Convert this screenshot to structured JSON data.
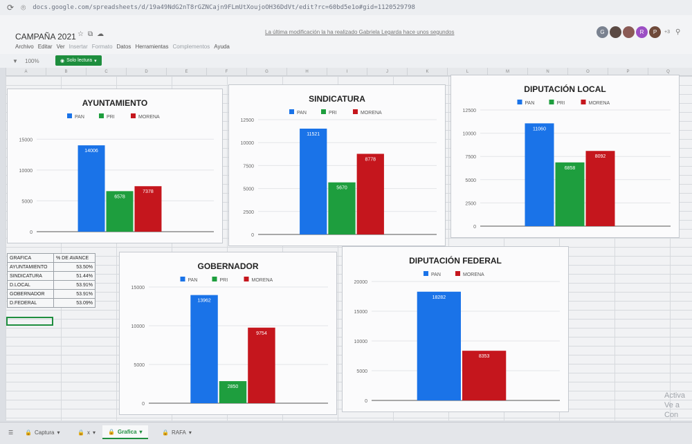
{
  "browser": {
    "url": "docs.google.com/spreadsheets/d/19a49NdG2nT8rGZNCajn9FLmUtXoujoOH36DdVt/edit?rc=60bd5e1o#gid=1120529798"
  },
  "document": {
    "title": "CAMPAÑA 2021",
    "last_edit": "La última modificación la ha realizado Gabriela Legarda hace unos segundos",
    "menus": [
      "Archivo",
      "Editar",
      "Ver",
      "Insertar",
      "Formato",
      "Datos",
      "Herramientas",
      "Complementos",
      "Ayuda"
    ],
    "zoom": "100%",
    "readonly_label": "Solo lectura",
    "more_users": "+3"
  },
  "avatars": [
    {
      "letter": "G",
      "color": "#7a8290"
    },
    {
      "letter": "",
      "color": "#5b4a44"
    },
    {
      "letter": "",
      "color": "#8a5a55"
    },
    {
      "letter": "R",
      "color": "#9c4fc4"
    },
    {
      "letter": "P",
      "color": "#6f4a3a"
    }
  ],
  "columns": [
    "A",
    "B",
    "C",
    "D",
    "E",
    "F",
    "G",
    "H",
    "I",
    "J",
    "K",
    "L",
    "M",
    "N",
    "O",
    "P",
    "Q"
  ],
  "colors": {
    "PAN": "#1a73e8",
    "PRI": "#1e9e3e",
    "MORENA": "#c5161d"
  },
  "chart_data": [
    {
      "id": "ayuntamiento",
      "type": "bar",
      "title": "AYUNTAMIENTO",
      "legend": [
        "PAN",
        "PRI",
        "MORENA"
      ],
      "legend_position": "top",
      "values": [
        14006,
        6578,
        7378
      ],
      "ylim": [
        0,
        17500
      ],
      "ticks": [
        0,
        5000,
        10000,
        15000
      ]
    },
    {
      "id": "sindicatura",
      "type": "bar",
      "title": "SINDICATURA",
      "legend": [
        "PAN",
        "PRI",
        "MORENA"
      ],
      "legend_position": "top",
      "values": [
        11521,
        5670,
        8778
      ],
      "ylim": [
        0,
        12500
      ],
      "ticks": [
        0,
        2500,
        5000,
        7500,
        10000,
        12500
      ]
    },
    {
      "id": "diputacion-local",
      "type": "bar",
      "title": "DIPUTACIÓN LOCAL",
      "legend": [
        "PAN",
        "PRI",
        "MORENA"
      ],
      "legend_position": "top",
      "values": [
        11060,
        6858,
        8092
      ],
      "ylim": [
        0,
        12500
      ],
      "ticks": [
        0,
        2500,
        5000,
        7500,
        10000,
        12500
      ]
    },
    {
      "id": "gobernador",
      "type": "bar",
      "title": "GOBERNADOR",
      "legend": [
        "PAN",
        "PRI",
        "MORENA"
      ],
      "legend_position": "top",
      "values": [
        13962,
        2850,
        9754
      ],
      "ylim": [
        0,
        15000
      ],
      "ticks": [
        0,
        5000,
        10000,
        15000
      ]
    },
    {
      "id": "diputacion-federal",
      "type": "bar",
      "title": "DIPUTACIÓN FEDERAL",
      "legend": [
        "PAN",
        "MORENA"
      ],
      "legend_position": "top",
      "values": [
        18282,
        8353
      ],
      "ylim": [
        0,
        20000
      ],
      "ticks": [
        0,
        5000,
        10000,
        15000,
        20000
      ]
    }
  ],
  "summary": {
    "headers": [
      "GRAFICA",
      "% DE AVANCE"
    ],
    "rows": [
      [
        "AYUNTAMIENTO",
        "53.50%"
      ],
      [
        "SINDICATURA",
        "51.44%"
      ],
      [
        "D.LOCAL",
        "53.91%"
      ],
      [
        "GOBERNADOR",
        "53.91%"
      ],
      [
        "D.FEDERAL",
        "53.09%"
      ]
    ]
  },
  "sheet_tabs": [
    "Captura",
    "x",
    "Grafica",
    "RAFA"
  ],
  "active_tab": "Grafica",
  "watermark": [
    "Activa",
    "Ve a Con"
  ]
}
